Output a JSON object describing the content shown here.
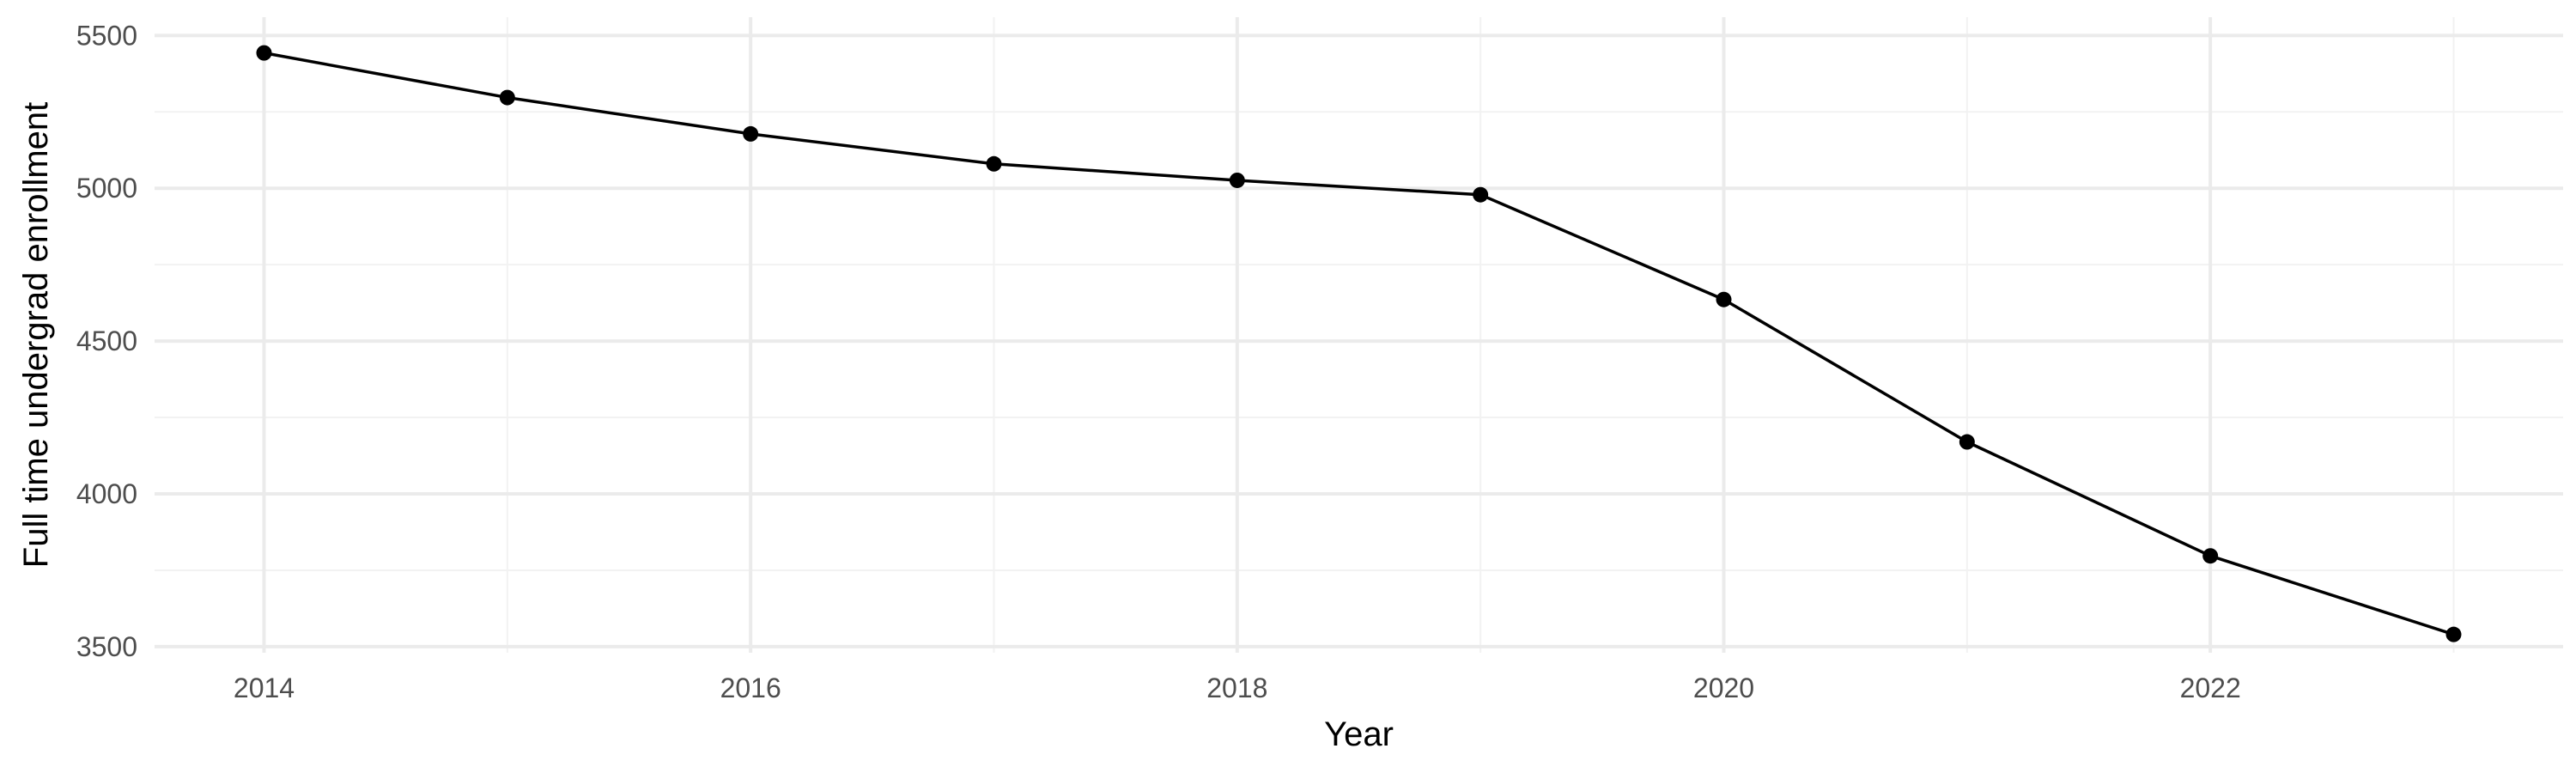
{
  "chart_data": {
    "type": "line",
    "title": "",
    "xlabel": "Year",
    "ylabel": "Full time undergrad enrollment",
    "x": [
      2014,
      2015,
      2016,
      2017,
      2018,
      2019,
      2020,
      2021,
      2022,
      2023
    ],
    "series": [
      {
        "values": [
          5443,
          5297,
          5178,
          5080,
          5026,
          4979,
          4636,
          4170,
          3797,
          3540
        ]
      }
    ],
    "xlim": [
      2013.55,
      2023.45
    ],
    "ylim": [
      3480,
      5560
    ],
    "x_ticks": [
      2014,
      2016,
      2018,
      2020,
      2022
    ],
    "x_tick_labels": [
      "2014",
      "2016",
      "2018",
      "2020",
      "2022"
    ],
    "x_minor_ticks": [
      2015,
      2017,
      2019,
      2021,
      2023
    ],
    "y_ticks": [
      3500,
      4000,
      4500,
      5000,
      5500
    ],
    "y_tick_labels": [
      "3500",
      "4000",
      "4500",
      "5000",
      "5500"
    ],
    "y_minor_ticks": [
      3750,
      4250,
      4750,
      5250
    ],
    "grid": true,
    "legend": "none",
    "colors": {
      "line": "#000000",
      "point": "#000000",
      "grid_major": "#ebebeb",
      "grid_minor": "#f2f2f2",
      "tick_label": "#4d4d4d",
      "axis_title": "#000000"
    }
  }
}
